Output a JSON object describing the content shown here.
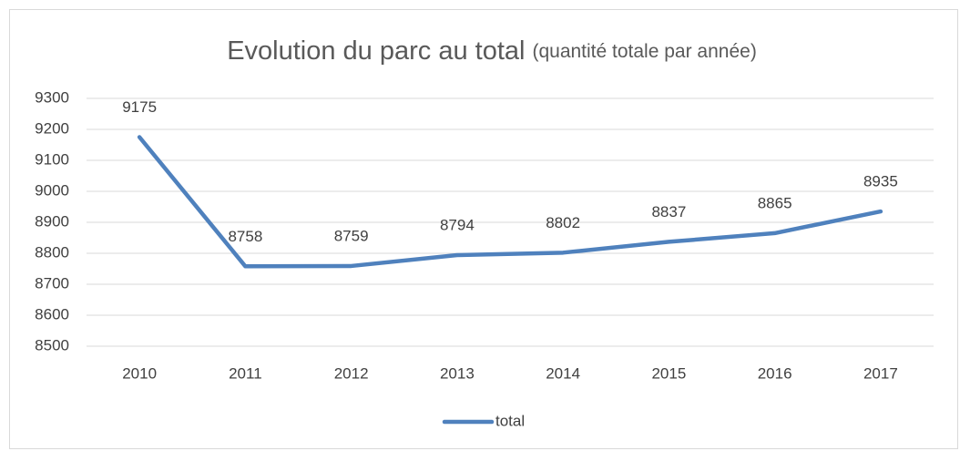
{
  "chart_data": {
    "type": "line",
    "title": "Evolution du parc au total",
    "subtitle": "(quantité totale par année)",
    "categories": [
      "2010",
      "2011",
      "2012",
      "2013",
      "2014",
      "2015",
      "2016",
      "2017"
    ],
    "series": [
      {
        "name": "total",
        "color": "#4f81bd",
        "values": [
          9175,
          8758,
          8759,
          8794,
          8802,
          8837,
          8865,
          8935
        ]
      }
    ],
    "ylim": [
      8500,
      9300
    ],
    "yticks": [
      8500,
      8600,
      8700,
      8800,
      8900,
      9000,
      9100,
      9200,
      9300
    ],
    "grid": true,
    "legend": "bottom"
  }
}
